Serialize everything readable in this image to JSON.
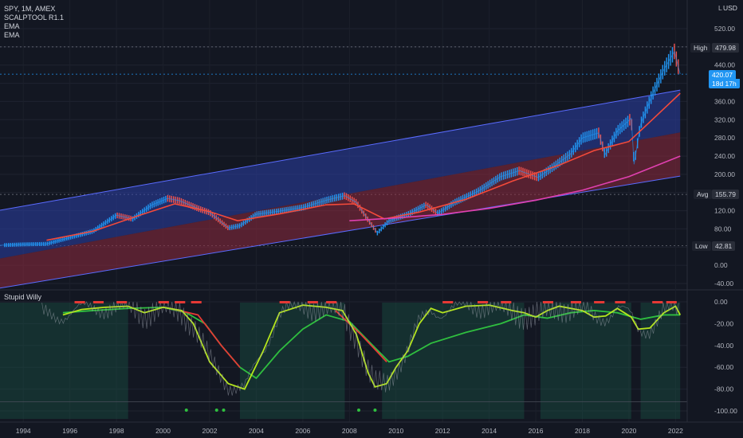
{
  "header": {
    "symbol_line": "SPY, 1M, AMEX",
    "indicators": [
      "SCALPTOOL R1.1",
      "EMA",
      "EMA"
    ],
    "currency": "USD",
    "log_button": "L"
  },
  "oscillator": {
    "title": "Stupid Willy"
  },
  "price_tags": {
    "high_label": "High",
    "high_value": "479.98",
    "last_value": "420.07",
    "countdown": "18d 17h",
    "avg_label": "Avg",
    "avg_value": "155.79",
    "low_label": "Low",
    "low_value": "42.81"
  },
  "colors": {
    "background": "#131722",
    "up": "#2196f3",
    "down": "#ef5350",
    "channel_upper": "#2b3fa8",
    "channel_lower": "#8f2a3e",
    "ema_fast": "#f44a3a",
    "ema_slow": "#e040b0",
    "osc_fast": "#b5e61d",
    "osc_slow": "#2fbf3f",
    "osc_red": "#e53935"
  },
  "chart_data": [
    {
      "type": "line",
      "title": "SPY, 1M, AMEX",
      "x_ticks": [
        "1994",
        "1996",
        "1998",
        "2000",
        "2002",
        "2004",
        "2006",
        "2008",
        "2010",
        "2012",
        "2014",
        "2016",
        "2018",
        "2020",
        "2022"
      ],
      "y_ticks": [
        "520.00",
        "480.00",
        "440.00",
        "400.00",
        "360.00",
        "320.00",
        "280.00",
        "240.00",
        "200.00",
        "160.00",
        "120.00",
        "80.00",
        "40.00",
        "0.00",
        "-40.00"
      ],
      "ylim": [
        -40,
        540
      ],
      "xlim": [
        1993.0,
        2022.5
      ],
      "series": [
        {
          "name": "SPY",
          "x": [
            1993.0,
            1994.0,
            1995.0,
            1996.0,
            1997.0,
            1998.0,
            1998.7,
            1999.5,
            2000.2,
            2000.7,
            2001.5,
            2002.0,
            2002.8,
            2003.3,
            2004.0,
            2005.0,
            2006.0,
            2007.0,
            2007.8,
            2008.3,
            2008.8,
            2009.2,
            2009.7,
            2010.5,
            2011.3,
            2011.8,
            2012.5,
            2013.5,
            2014.5,
            2015.3,
            2016.1,
            2016.8,
            2017.5,
            2018.0,
            2018.7,
            2018.97,
            2019.5,
            2020.1,
            2020.22,
            2020.5,
            2021.0,
            2021.5,
            2021.95,
            2022.2
          ],
          "y": [
            44,
            46,
            47,
            61,
            75,
            110,
            102,
            132,
            147,
            142,
            125,
            116,
            82,
            87,
            112,
            119,
            127,
            143,
            153,
            138,
            100,
            71,
            98,
            112,
            133,
            114,
            138,
            162,
            195,
            208,
            193,
            218,
            245,
            280,
            291,
            243,
            295,
            323,
            222,
            310,
            375,
            430,
            470,
            420
          ]
        },
        {
          "name": "EMA fast",
          "x": [
            1995.0,
            1997.0,
            1999.0,
            2000.5,
            2002.0,
            2003.2,
            2005.0,
            2007.0,
            2008.2,
            2009.5,
            2011.0,
            2013.0,
            2015.0,
            2017.0,
            2018.5,
            2020.0,
            2021.0,
            2022.2
          ],
          "y": [
            55,
            75,
            110,
            135,
            118,
            98,
            113,
            133,
            135,
            102,
            117,
            145,
            185,
            220,
            252,
            272,
            320,
            378
          ]
        },
        {
          "name": "EMA slow",
          "x": [
            2008.0,
            2010.0,
            2012.0,
            2014.0,
            2016.0,
            2018.0,
            2020.0,
            2022.2
          ],
          "y": [
            98,
            104,
            112,
            125,
            143,
            165,
            195,
            240
          ]
        }
      ]
    },
    {
      "type": "line",
      "title": "Stupid Willy",
      "y_ticks": [
        "0.00",
        "-20.00",
        "-40.00",
        "-60.00",
        "-80.00",
        "-100.00"
      ],
      "ylim": [
        -105,
        3
      ],
      "series": [
        {
          "name": "fast",
          "x": [
            1995.7,
            1996.5,
            1997.5,
            1998.5,
            1999.2,
            2000.0,
            2000.8,
            2001.3,
            2002.0,
            2002.8,
            2003.5,
            2004.3,
            2005.0,
            2006.0,
            2007.0,
            2007.7,
            2008.3,
            2008.8,
            2009.1,
            2009.6,
            2010.0,
            2010.5,
            2011.0,
            2011.5,
            2012.0,
            2013.0,
            2014.0,
            2015.0,
            2015.5,
            2016.0,
            2016.5,
            2017.0,
            2018.0,
            2018.5,
            2019.0,
            2019.5,
            2020.1,
            2020.4,
            2020.9,
            2021.5,
            2022.0,
            2022.2
          ],
          "y": [
            -12,
            -7,
            -5,
            -4,
            -10,
            -5,
            -8,
            -20,
            -55,
            -75,
            -80,
            -45,
            -10,
            -3,
            -5,
            -8,
            -30,
            -65,
            -78,
            -75,
            -60,
            -45,
            -20,
            -6,
            -10,
            -4,
            -3,
            -8,
            -10,
            -14,
            -8,
            -4,
            -8,
            -14,
            -13,
            -6,
            -14,
            -25,
            -24,
            -10,
            -4,
            -12
          ]
        },
        {
          "name": "slow",
          "x": [
            1995.7,
            1997.0,
            1998.5,
            2000.0,
            2001.0,
            2001.8,
            2002.5,
            2003.3,
            2004.0,
            2005.0,
            2006.0,
            2007.0,
            2008.0,
            2009.0,
            2009.7,
            2010.5,
            2011.5,
            2013.0,
            2014.5,
            2015.5,
            2016.5,
            2017.5,
            2018.5,
            2019.5,
            2020.5,
            2021.5,
            2022.2
          ],
          "y": [
            -10,
            -8,
            -6,
            -5,
            -10,
            -20,
            -40,
            -60,
            -70,
            -45,
            -25,
            -12,
            -18,
            -40,
            -55,
            -50,
            -38,
            -28,
            -20,
            -12,
            -15,
            -10,
            -8,
            -10,
            -16,
            -12,
            -12
          ]
        }
      ]
    }
  ]
}
